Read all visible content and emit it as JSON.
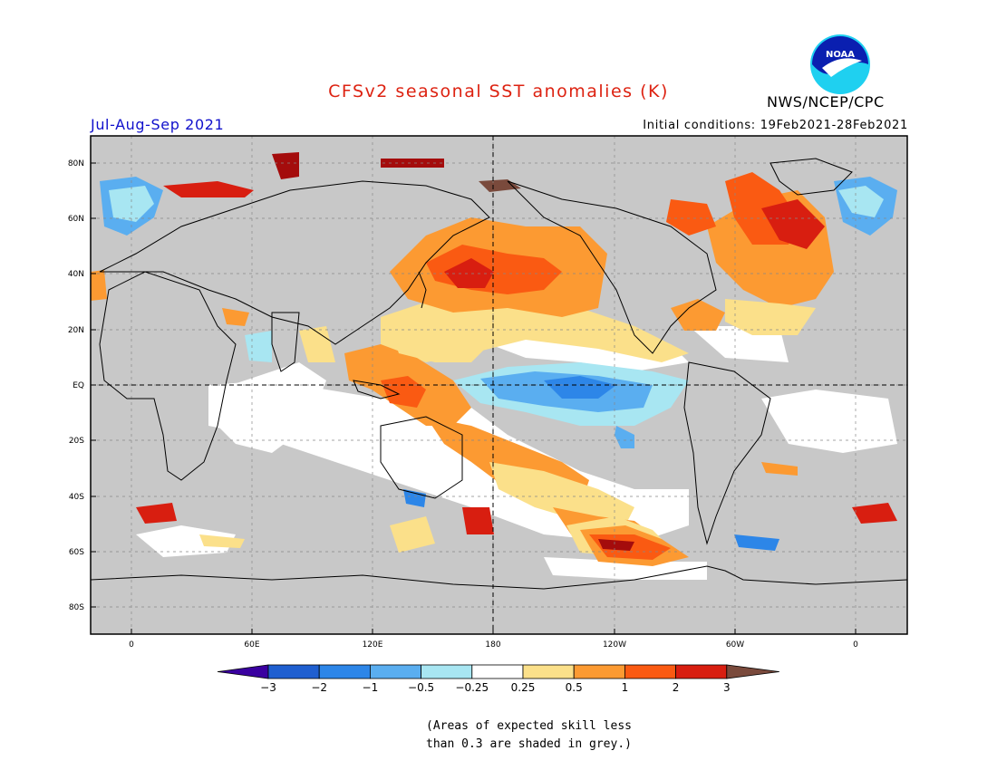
{
  "title": "CFSv2 seasonal SST anomalies (K)",
  "season_label": "Jul-Aug-Sep 2021",
  "initial_conditions": "Initial conditions: 19Feb2021-28Feb2021",
  "agency": "NWS/NCEP/CPC",
  "logo_text": "NOAA",
  "colors": {
    "title": "#dd2211",
    "season": "#1111cc",
    "land": "#c8c8c8",
    "bins": [
      "#3a00a0",
      "#1f5fd0",
      "#2d86e8",
      "#5aaef0",
      "#a8e6f2",
      "#ffffff",
      "#fbe08a",
      "#fc9a32",
      "#fa5a12",
      "#d81e10",
      "#a40c0c",
      "#7a4a3c"
    ]
  },
  "axes": {
    "lat_labels": [
      "80N",
      "60N",
      "40N",
      "20N",
      "EQ",
      "20S",
      "40S",
      "60S",
      "80S"
    ],
    "lon_labels": [
      "0",
      "60E",
      "120E",
      "180",
      "120W",
      "60W",
      "0"
    ]
  },
  "colorbar": {
    "labels": [
      "-3",
      "-2",
      "-1",
      "-0.5",
      "-0.25",
      "0.25",
      "0.5",
      "1",
      "2",
      "3"
    ]
  },
  "footnote": {
    "line1": "(Areas of expected skill less",
    "line2": "than 0.3 are shaded in grey.)"
  }
}
